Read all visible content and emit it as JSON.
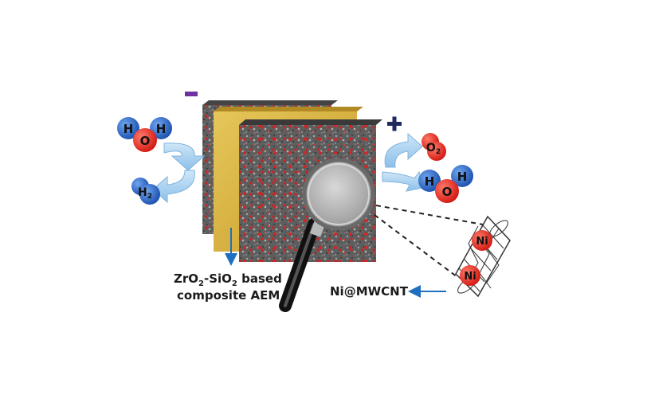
{
  "water_left": {
    "h1": "H",
    "o": "O",
    "h2": "H"
  },
  "hydrogen_left": {
    "symbol": "H",
    "sub": "2"
  },
  "oxygen_right": {
    "symbol": "O",
    "sub": "2"
  },
  "water_right": {
    "h1": "H",
    "o": "O",
    "h2": "H"
  },
  "nickel_particles": [
    "Ni",
    "Ni"
  ],
  "membrane_label": {
    "line1_parts": [
      "ZrO",
      "2",
      "-SiO",
      "2",
      " based"
    ],
    "line2": "composite AEM"
  },
  "catalyst_label": "Ni@MWCNT",
  "colors": {
    "negative_sign": "#7030a0",
    "positive_sign": "#1f2a5c",
    "hydrogen_atom": "#1f5fbf",
    "oxygen_atom": "#e0201c",
    "pointer_arrow": "#1f6fbf",
    "membrane": "#d7b23c",
    "electrode": "#6d6d6d"
  }
}
